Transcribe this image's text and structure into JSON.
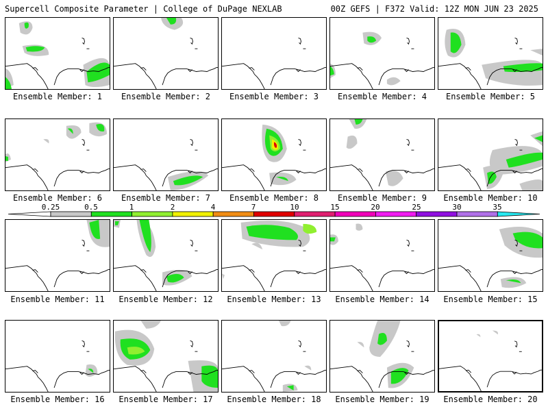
{
  "header": {
    "left": "Supercell Composite Parameter | College of DuPage NEXLAB",
    "right": "00Z GEFS | F372 Valid: 12Z MON JUN 23 2025"
  },
  "legend": {
    "labels": [
      "0.25",
      "0.5",
      "1",
      "2",
      "4",
      "7",
      "10",
      "15",
      "20",
      "25",
      "30",
      "35"
    ],
    "colors": [
      "#c8c8c8",
      "#20e020",
      "#90ef30",
      "#f0f000",
      "#f08c14",
      "#e00000",
      "#e02070",
      "#f000b8",
      "#f01cf0",
      "#9010e0",
      "#b070e8",
      "#28e8f0"
    ]
  },
  "panels": [
    {
      "label": "Ensemble Member: 1"
    },
    {
      "label": "Ensemble Member: 2"
    },
    {
      "label": "Ensemble Member: 3"
    },
    {
      "label": "Ensemble Member: 4"
    },
    {
      "label": "Ensemble Member: 5"
    },
    {
      "label": "Ensemble Member: 6"
    },
    {
      "label": "Ensemble Member: 7"
    },
    {
      "label": "Ensemble Member: 8"
    },
    {
      "label": "Ensemble Member: 9"
    },
    {
      "label": "Ensemble Member: 10"
    },
    {
      "label": "Ensemble Member: 11"
    },
    {
      "label": "Ensemble Member: 12"
    },
    {
      "label": "Ensemble Member: 13"
    },
    {
      "label": "Ensemble Member: 14"
    },
    {
      "label": "Ensemble Member: 15"
    },
    {
      "label": "Ensemble Member: 16"
    },
    {
      "label": "Ensemble Member: 17"
    },
    {
      "label": "Ensemble Member: 18"
    },
    {
      "label": "Ensemble Member: 19"
    },
    {
      "label": "Ensemble Member: 20"
    }
  ]
}
